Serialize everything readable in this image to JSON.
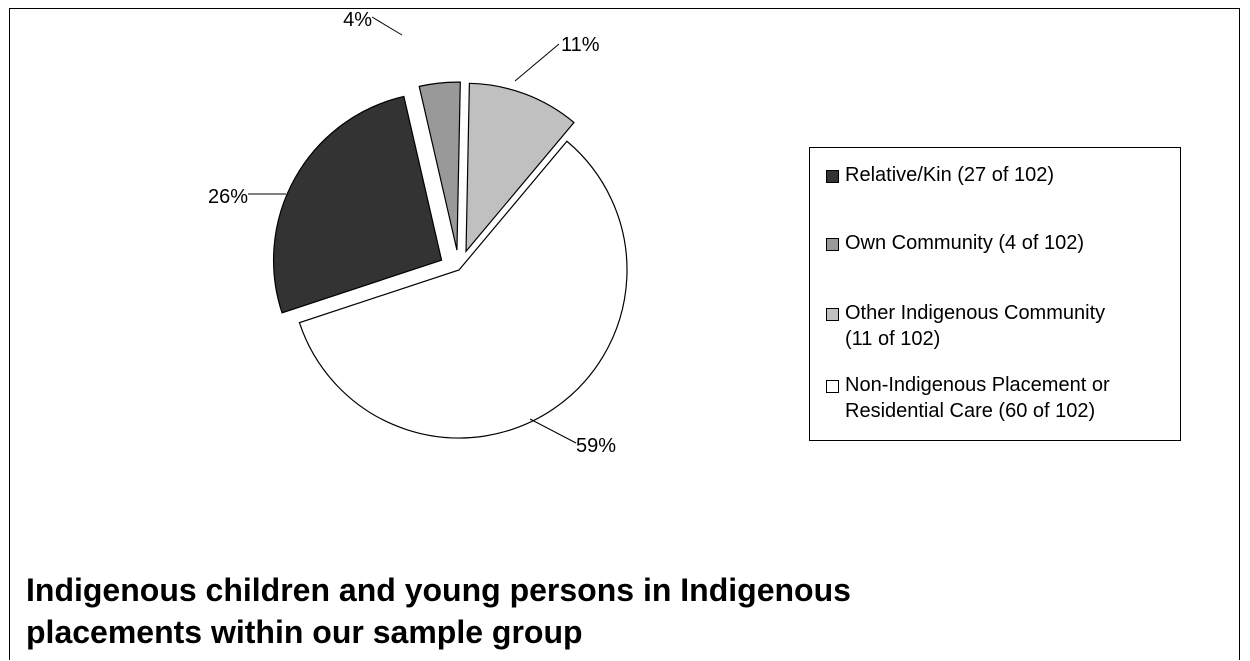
{
  "chart_data": {
    "type": "pie",
    "title": "Indigenous children and young persons in Indigenous placements within our sample group",
    "slices": [
      {
        "name": "Relative/Kin (27 of 102)",
        "value": 27,
        "percent": 26,
        "label": "26%",
        "color": "#333333"
      },
      {
        "name": "Own Community (4 of 102)",
        "value": 4,
        "percent": 4,
        "label": "4%",
        "color": "#999999"
      },
      {
        "name": "Other Indigenous Community\n(11 of 102)",
        "value": 11,
        "percent": 11,
        "label": "11%",
        "color": "#c0c0c0"
      },
      {
        "name": "Non-Indigenous Placement or\nResidential Care (60 of 102)",
        "value": 60,
        "percent": 59,
        "label": "59%",
        "color": "#ffffff"
      }
    ],
    "legend_placement": "right"
  },
  "title_lines": [
    "Indigenous children and young persons in Indigenous",
    "placements within our sample group"
  ]
}
